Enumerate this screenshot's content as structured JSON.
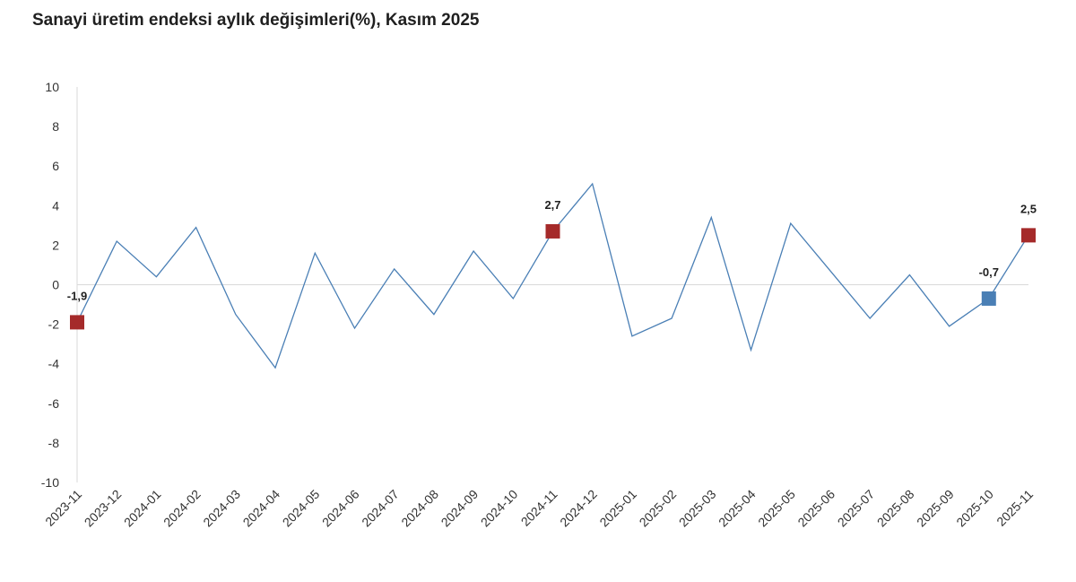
{
  "chart_data": {
    "type": "line",
    "title": "Sanayi üretim endeksi aylık değişimleri(%), Kasım 2025",
    "xlabel": "",
    "ylabel": "",
    "ylim": [
      -10,
      10
    ],
    "yticks": [
      10,
      8,
      6,
      4,
      2,
      0,
      -2,
      -4,
      -6,
      -8,
      -10
    ],
    "grid": false,
    "legend": "none",
    "categories": [
      "2023-11",
      "2023-12",
      "2024-01",
      "2024-02",
      "2024-03",
      "2024-04",
      "2024-05",
      "2024-06",
      "2024-07",
      "2024-08",
      "2024-09",
      "2024-10",
      "2024-11",
      "2024-12",
      "2025-01",
      "2025-02",
      "2025-03",
      "2025-04",
      "2025-05",
      "2025-06",
      "2025-07",
      "2025-08",
      "2025-09",
      "2025-10",
      "2025-11"
    ],
    "values": [
      -1.9,
      2.2,
      0.4,
      2.9,
      -1.5,
      -4.2,
      1.6,
      -2.2,
      0.8,
      -1.5,
      1.7,
      -0.7,
      2.7,
      5.1,
      -2.6,
      -1.7,
      3.4,
      -3.3,
      3.1,
      0.7,
      -1.7,
      0.5,
      -2.1,
      -0.7,
      2.5
    ],
    "highlights": [
      {
        "index": 0,
        "label": "-1,9",
        "color": "#a52a2a"
      },
      {
        "index": 12,
        "label": "2,7",
        "color": "#a52a2a"
      },
      {
        "index": 23,
        "label": "-0,7",
        "color": "#4a7fb5"
      },
      {
        "index": 24,
        "label": "2,5",
        "color": "#a52a2a"
      }
    ],
    "colors": {
      "line": "#4a7fb5",
      "axis": "#d9d9d9"
    }
  }
}
